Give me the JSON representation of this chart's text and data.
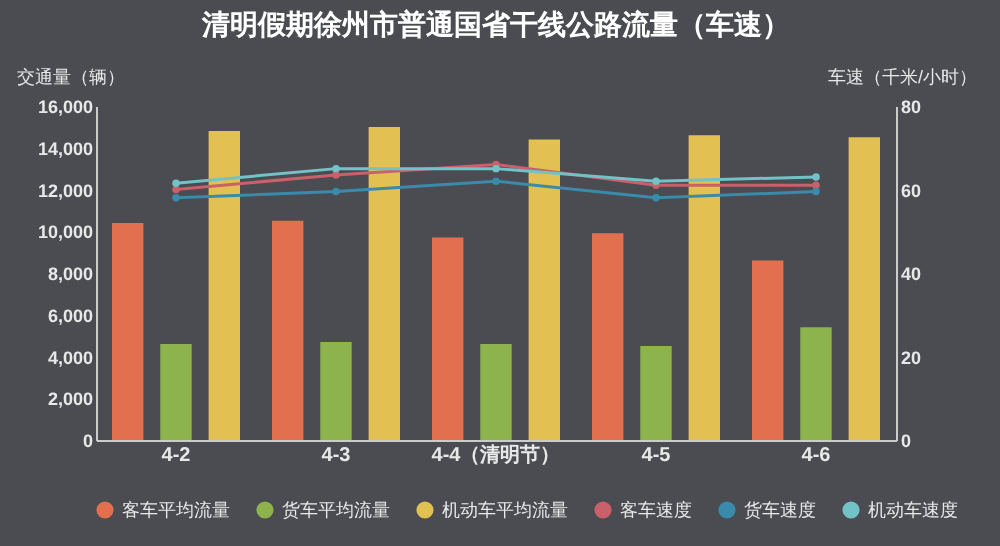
{
  "chart_data": {
    "type": "bar",
    "title": "清明假期徐州市普通国省干线公路流量（车速）",
    "categories": [
      "4-2",
      "4-3",
      "4-4（清明节）",
      "4-5",
      "4-6"
    ],
    "ylabel": "交通量（辆）",
    "y2label": "车速（千米/小时）",
    "series": [
      {
        "name": "客车平均流量",
        "color": "#e2704f",
        "values": [
          10400,
          10500,
          9700,
          9900,
          8600
        ]
      },
      {
        "name": "货车平均流量",
        "color": "#8db34c",
        "values": [
          4600,
          4700,
          4600,
          4500,
          5400
        ]
      },
      {
        "name": "机动车平均流量",
        "color": "#e2c051",
        "values": [
          14800,
          15000,
          14400,
          14600,
          14500
        ]
      },
      {
        "name": "客车速度",
        "type": "line",
        "axis": "y2",
        "color": "#c9606a",
        "values": [
          60,
          63.5,
          66,
          61,
          61
        ]
      },
      {
        "name": "货车速度",
        "type": "line",
        "axis": "y2",
        "color": "#3a8bab",
        "values": [
          58,
          59.5,
          62,
          58,
          59.5
        ]
      },
      {
        "name": "机动车速度",
        "type": "line",
        "axis": "y2",
        "color": "#72c2c8",
        "values": [
          61.5,
          65,
          65,
          62,
          63
        ]
      }
    ],
    "ylim": [
      0,
      16000
    ],
    "yticks": [
      0,
      {
        "value": 2000,
        "label": "2,000"
      },
      {
        "value": 4000,
        "label": "4,000"
      },
      {
        "value": 6000,
        "label": "6,000"
      },
      {
        "value": 8000,
        "label": "8,000"
      },
      {
        "value": 10000,
        "label": "10,000"
      },
      {
        "value": 12000,
        "label": "12,000"
      },
      {
        "value": 14000,
        "label": "14,000"
      },
      {
        "value": 16000,
        "label": "16,000"
      }
    ],
    "y2lim": [
      0,
      80
    ],
    "y2ticks": [
      0,
      20,
      40,
      60,
      80
    ],
    "legend": "bottom",
    "marker": "circle",
    "grid": false
  }
}
